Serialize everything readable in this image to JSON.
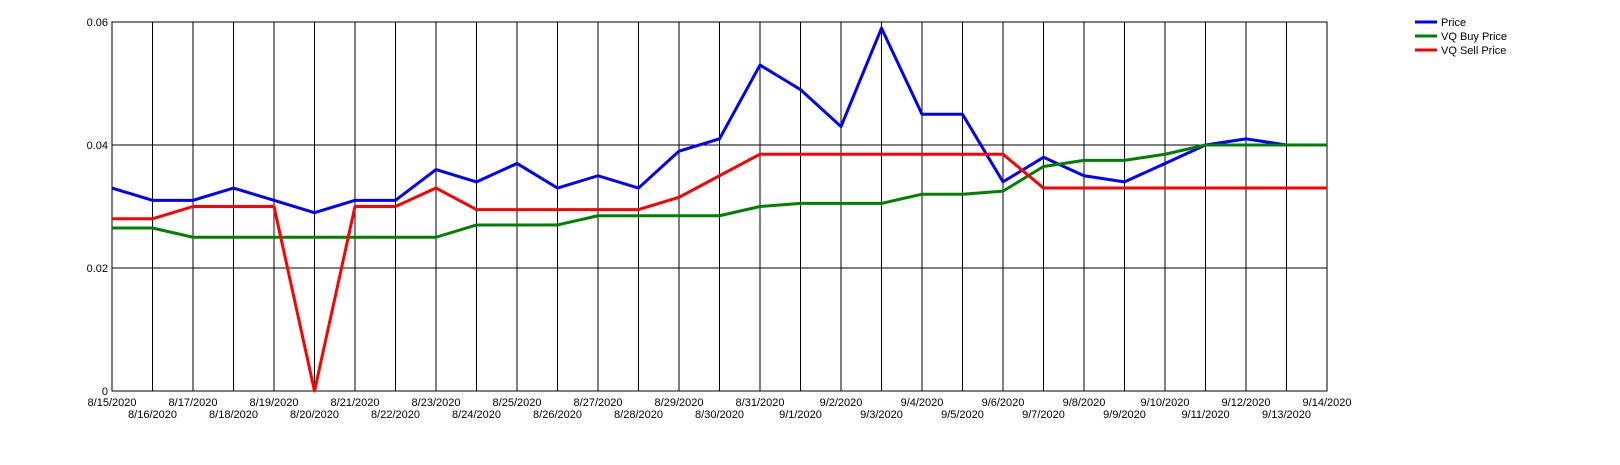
{
  "chart_data": {
    "type": "line",
    "x": [
      "8/15/2020",
      "8/16/2020",
      "8/17/2020",
      "8/18/2020",
      "8/19/2020",
      "8/20/2020",
      "8/21/2020",
      "8/22/2020",
      "8/23/2020",
      "8/24/2020",
      "8/25/2020",
      "8/26/2020",
      "8/27/2020",
      "8/28/2020",
      "8/29/2020",
      "8/30/2020",
      "8/31/2020",
      "9/1/2020",
      "9/2/2020",
      "9/3/2020",
      "9/4/2020",
      "9/5/2020",
      "9/6/2020",
      "9/7/2020",
      "9/8/2020",
      "9/9/2020",
      "9/10/2020",
      "9/11/2020",
      "9/12/2020",
      "9/13/2020",
      "9/14/2020"
    ],
    "series": [
      {
        "name": "Price",
        "color": "#0000ff",
        "values": [
          0.033,
          0.031,
          0.031,
          0.033,
          0.031,
          0.029,
          0.031,
          0.031,
          0.036,
          0.034,
          0.037,
          0.033,
          0.035,
          0.033,
          0.039,
          0.041,
          0.053,
          0.049,
          0.043,
          0.059,
          0.045,
          0.045,
          0.034,
          0.038,
          0.035,
          0.034,
          0.037,
          0.04,
          0.041,
          0.04,
          0.04
        ]
      },
      {
        "name": "VQ Buy Price",
        "color": "#008000",
        "values": [
          0.0265,
          0.0265,
          0.025,
          0.025,
          0.025,
          0.025,
          0.025,
          0.025,
          0.025,
          0.027,
          0.027,
          0.027,
          0.0285,
          0.0285,
          0.0285,
          0.0285,
          0.03,
          0.0305,
          0.0305,
          0.0305,
          0.032,
          0.032,
          0.0325,
          0.0365,
          0.0375,
          0.0375,
          0.0385,
          0.04,
          0.04,
          0.04,
          0.04
        ]
      },
      {
        "name": "VQ Sell Price",
        "color": "#ff0000",
        "values": [
          0.028,
          0.028,
          0.03,
          0.03,
          0.03,
          0,
          0.03,
          0.03,
          0.033,
          0.0295,
          0.0295,
          0.0295,
          0.0295,
          0.0295,
          0.0315,
          0.035,
          0.0385,
          0.0385,
          0.0385,
          0.0385,
          0.0385,
          0.0385,
          0.0385,
          0.033,
          0.033,
          0.033,
          0.033,
          0.033,
          0.033,
          0.033,
          0.033
        ]
      }
    ],
    "ylim": [
      0,
      0.06
    ],
    "yticks": [
      0,
      0.02,
      0.04,
      0.06
    ],
    "grid": true
  }
}
